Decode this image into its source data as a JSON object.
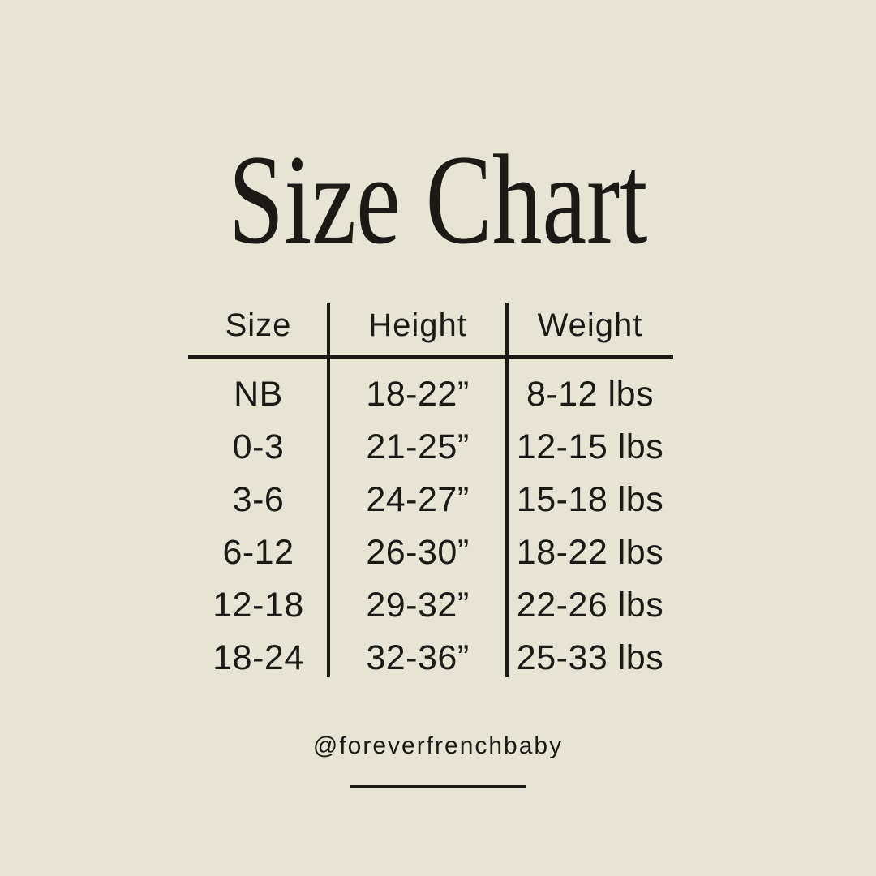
{
  "colors": {
    "background": "#e8e4d4",
    "ink": "#1b1a17"
  },
  "header": {
    "title": "Size Chart"
  },
  "chart_data": {
    "type": "table",
    "title": "Size Chart",
    "columns": [
      "Size",
      "Height",
      "Weight"
    ],
    "rows": [
      [
        "NB",
        "18-22”",
        "8-12 lbs"
      ],
      [
        "0-3",
        "21-25”",
        "12-15 lbs"
      ],
      [
        "3-6",
        "24-27”",
        "15-18 lbs"
      ],
      [
        "6-12",
        "26-30”",
        "18-22 lbs"
      ],
      [
        "12-18",
        "29-32”",
        "22-26 lbs"
      ],
      [
        "18-24",
        "32-36”",
        "25-33 lbs"
      ]
    ]
  },
  "footer": {
    "handle": "@foreverfrenchbaby"
  }
}
